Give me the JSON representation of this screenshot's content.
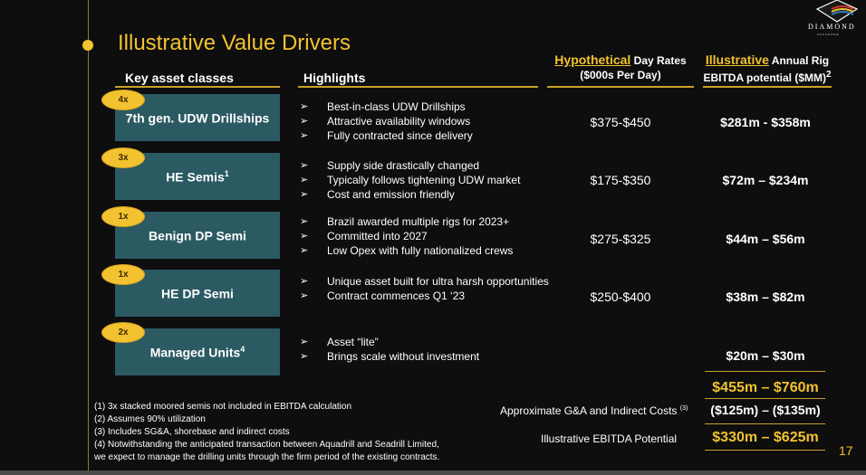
{
  "header": {
    "title": "Illustrative Value Drivers",
    "logo_text": "DIAMOND",
    "logo_sub": "OFFSHORE"
  },
  "columns": {
    "asset_classes": "Key asset classes",
    "highlights": "Highlights",
    "day_rates_emph": "Hypothetical",
    "day_rates_rest": "Day Rates",
    "day_rates_sub": "($000s Per Day)",
    "ebitda_emph": "Illustrative",
    "ebitda_rest": "Annual Rig",
    "ebitda_sub": "EBITDA potential ($MM)",
    "ebitda_sup": "2"
  },
  "rows": [
    {
      "multiplier": "4x",
      "asset": "7th gen. UDW Drillships",
      "asset_sup": "",
      "highlights": [
        "Best-in-class UDW Drillships",
        "Attractive availability windows",
        "Fully contracted since delivery"
      ],
      "day_rate": "$375-$450",
      "ebitda": "$281m - $358m"
    },
    {
      "multiplier": "3x",
      "asset": "HE Semis",
      "asset_sup": "1",
      "highlights": [
        "Supply side drastically changed",
        "Typically follows tightening UDW market",
        "Cost and emission friendly"
      ],
      "day_rate": "$175-$350",
      "ebitda": "$72m – $234m"
    },
    {
      "multiplier": "1x",
      "asset": "Benign DP Semi",
      "asset_sup": "",
      "highlights": [
        "Brazil awarded multiple rigs for 2023+",
        "Committed into 2027",
        "Low Opex with fully nationalized crews"
      ],
      "day_rate": "$275-$325",
      "ebitda": "$44m – $56m"
    },
    {
      "multiplier": "1x",
      "asset": "HE DP Semi",
      "asset_sup": "",
      "highlights": [
        "Unique asset built for ultra harsh opportunities",
        "Contract commences Q1 ‘23"
      ],
      "day_rate": "$250-$400",
      "ebitda": "$38m – $82m"
    },
    {
      "multiplier": "2x",
      "asset": "Managed Units",
      "asset_sup": "4",
      "highlights": [
        "Asset “lite”",
        "Brings scale without investment"
      ],
      "day_rate": "",
      "ebitda": "$20m – $30m"
    }
  ],
  "totals": {
    "gross": "$455m – $760m",
    "ga_label": "Approximate G&A and Indirect Costs",
    "ga_sup": "(3)",
    "ga_value": "($125m) – ($135m)",
    "net_label": "Illustrative EBITDA Potential",
    "net_value": "$330m – $625m"
  },
  "footnotes": [
    "(1) 3x stacked moored semis not included in EBITDA calculation",
    "(2) Assumes 90% utilization",
    "(3) Includes SG&A, shorebase and indirect costs",
    "(4) Notwithstanding the anticipated transaction between Aquadrill and Seadrill Limited,",
    "we expect to manage the drilling units through the firm period of the existing contracts."
  ],
  "page_number": "17",
  "colors": {
    "accent_gold": "#f2c230",
    "box_teal": "#2b5a63",
    "background": "#0e0e0e"
  }
}
